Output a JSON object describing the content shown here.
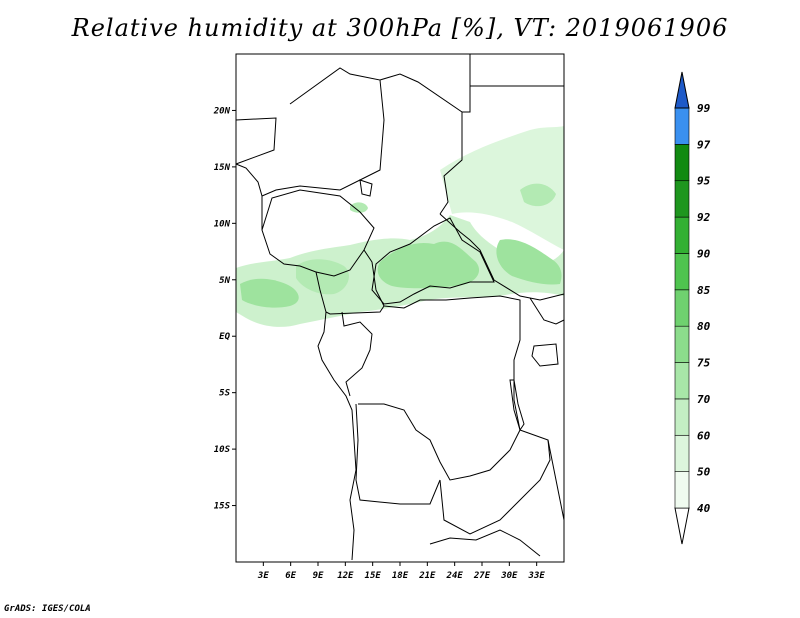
{
  "title": "Relative humidity at 300hPa [%], VT: 2019061906",
  "credit": "GrADS: IGES/COLA",
  "map": {
    "lon_range": [
      0,
      36
    ],
    "lat_range": [
      -20,
      25
    ],
    "lon_ticks": [
      "3E",
      "6E",
      "9E",
      "12E",
      "15E",
      "18E",
      "21E",
      "24E",
      "27E",
      "30E",
      "33E"
    ],
    "lat_ticks": [
      "20N",
      "15N",
      "10N",
      "5N",
      "EQ",
      "5S",
      "10S",
      "15S"
    ]
  },
  "colorbar": {
    "labels": [
      "40",
      "50",
      "60",
      "70",
      "75",
      "80",
      "85",
      "90",
      "92",
      "95",
      "97",
      "99"
    ],
    "colors": [
      "#ffffff",
      "#f0fbf0",
      "#dcf5dc",
      "#c4eec4",
      "#a8e6a8",
      "#8cdc8c",
      "#6fd16f",
      "#4fc44f",
      "#33b033",
      "#1e961e",
      "#118a11",
      "#3a90f0",
      "#2b72dc",
      "#1e5ac8"
    ]
  }
}
